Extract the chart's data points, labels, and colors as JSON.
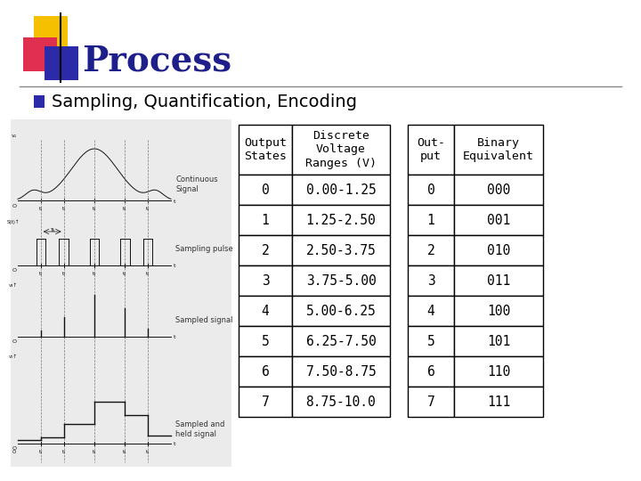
{
  "title": "Process",
  "subtitle": "Sampling, Quantification, Encoding",
  "title_color": "#1F1F8B",
  "subtitle_color": "#000000",
  "bullet_color": "#2B2BAA",
  "background_color": "#FFFFFF",
  "table1_headers": [
    "Output\nStates",
    "Discrete\nVoltage\nRanges (V)"
  ],
  "table1_data": [
    [
      "0",
      "0.00-1.25"
    ],
    [
      "1",
      "1.25-2.50"
    ],
    [
      "2",
      "2.50-3.75"
    ],
    [
      "3",
      "3.75-5.00"
    ],
    [
      "4",
      "5.00-6.25"
    ],
    [
      "5",
      "6.25-7.50"
    ],
    [
      "6",
      "7.50-8.75"
    ],
    [
      "7",
      "8.75-10.0"
    ]
  ],
  "table2_headers": [
    "Out-\nput",
    "Binary\nEquivalent"
  ],
  "table2_data": [
    [
      "0",
      "000"
    ],
    [
      "1",
      "001"
    ],
    [
      "2",
      "010"
    ],
    [
      "3",
      "011"
    ],
    [
      "4",
      "100"
    ],
    [
      "5",
      "101"
    ],
    [
      "6",
      "110"
    ],
    [
      "7",
      "111"
    ]
  ],
  "table_border_color": "#000000",
  "table_text_color": "#000000",
  "header_bg": "#FFFFFF",
  "cell_bg": "#FFFFFF",
  "yellow_color": "#F5C000",
  "red_color": "#E03050",
  "blue_color": "#2B2BAA",
  "line_color": "#888888",
  "signal_bg": "#EBEBEB",
  "signal_line": "#111111",
  "signal_label_color": "#333333"
}
